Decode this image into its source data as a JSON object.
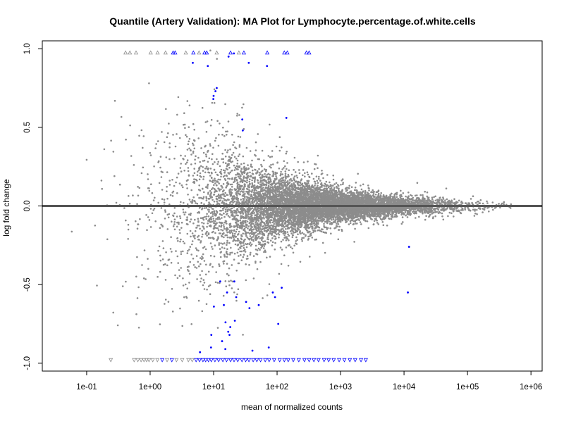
{
  "chart_data": {
    "type": "scatter",
    "title": "Quantile (Artery Validation): MA Plot for Lymphocyte.percentage.of.white.cells",
    "xlabel": "mean of normalized counts",
    "ylabel": "log fold change",
    "x_scale": "log10",
    "xlim": [
      0.02,
      1500000
    ],
    "ylim": [
      -1.05,
      1.05
    ],
    "x_ticks": [
      {
        "value": 0.1,
        "label": "1e-01"
      },
      {
        "value": 1,
        "label": "1e+00"
      },
      {
        "value": 10,
        "label": "1e+01"
      },
      {
        "value": 100,
        "label": "1e+02"
      },
      {
        "value": 1000,
        "label": "1e+03"
      },
      {
        "value": 10000,
        "label": "1e+04"
      },
      {
        "value": 100000,
        "label": "1e+05"
      },
      {
        "value": 1000000,
        "label": "1e+06"
      }
    ],
    "y_ticks": [
      {
        "value": 1.0,
        "label": "1.0"
      },
      {
        "value": 0.5,
        "label": "0.5"
      },
      {
        "value": 0.0,
        "label": "0.0"
      },
      {
        "value": -0.5,
        "label": "-0.5"
      },
      {
        "value": -1.0,
        "label": "-1.0"
      }
    ],
    "reference_line": {
      "y": 0,
      "color": "#555555"
    },
    "grid": false,
    "colors": {
      "not_significant": "#8c8c8c",
      "significant": "#0000ff"
    },
    "significant_points": [
      {
        "x": 4.7,
        "y": 0.91
      },
      {
        "x": 8.1,
        "y": 0.89
      },
      {
        "x": 17.2,
        "y": 0.95
      },
      {
        "x": 20.9,
        "y": 0.97
      },
      {
        "x": 35.8,
        "y": 0.91
      },
      {
        "x": 69.4,
        "y": 0.89
      },
      {
        "x": 11.2,
        "y": 0.75
      },
      {
        "x": 10.7,
        "y": 0.73
      },
      {
        "x": 10.0,
        "y": 0.7
      },
      {
        "x": 9.9,
        "y": 0.68
      },
      {
        "x": 28.3,
        "y": 0.55
      },
      {
        "x": 28.8,
        "y": 0.48
      },
      {
        "x": 140.1,
        "y": 0.56
      },
      {
        "x": 12.7,
        "y": -0.48
      },
      {
        "x": 16.3,
        "y": -0.55
      },
      {
        "x": 21.2,
        "y": -0.48
      },
      {
        "x": 118.3,
        "y": -0.52
      },
      {
        "x": 12000,
        "y": -0.26
      },
      {
        "x": 11500,
        "y": -0.55
      },
      {
        "x": 10.1,
        "y": -0.64
      },
      {
        "x": 14.5,
        "y": -0.63
      },
      {
        "x": 22.7,
        "y": -0.58
      },
      {
        "x": 32.5,
        "y": -0.61
      },
      {
        "x": 36.7,
        "y": -0.65
      },
      {
        "x": 51.4,
        "y": -0.63
      },
      {
        "x": 85.6,
        "y": -0.55
      },
      {
        "x": 92.8,
        "y": -0.58
      },
      {
        "x": 15.4,
        "y": -0.74
      },
      {
        "x": 18.3,
        "y": -0.77
      },
      {
        "x": 21.6,
        "y": -0.73
      },
      {
        "x": 104.3,
        "y": -0.75
      },
      {
        "x": 9.2,
        "y": -0.82
      },
      {
        "x": 13.6,
        "y": -0.86
      },
      {
        "x": 17.8,
        "y": -0.82
      },
      {
        "x": 6.1,
        "y": -0.93
      },
      {
        "x": 9.1,
        "y": -0.9
      },
      {
        "x": 15.3,
        "y": -0.91
      },
      {
        "x": 40.9,
        "y": -0.92
      },
      {
        "x": 73.9,
        "y": -0.9
      },
      {
        "x": 17.0,
        "y": -0.8
      }
    ],
    "capped_points": [
      {
        "x": 0.41,
        "y": 1.0,
        "significant": false
      },
      {
        "x": 0.48,
        "y": 1.0,
        "significant": false
      },
      {
        "x": 0.6,
        "y": 1.0,
        "significant": false
      },
      {
        "x": 1.02,
        "y": 1.0,
        "significant": false
      },
      {
        "x": 1.31,
        "y": 1.0,
        "significant": false
      },
      {
        "x": 1.75,
        "y": 1.0,
        "significant": false
      },
      {
        "x": 2.3,
        "y": 1.0,
        "significant": true
      },
      {
        "x": 2.48,
        "y": 1.0,
        "significant": true
      },
      {
        "x": 3.65,
        "y": 1.0,
        "significant": false
      },
      {
        "x": 4.8,
        "y": 1.0,
        "significant": true
      },
      {
        "x": 5.9,
        "y": 1.0,
        "significant": false
      },
      {
        "x": 7.2,
        "y": 1.0,
        "significant": true
      },
      {
        "x": 7.8,
        "y": 1.0,
        "significant": true
      },
      {
        "x": 11.2,
        "y": 1.0,
        "significant": false
      },
      {
        "x": 18.5,
        "y": 1.0,
        "significant": true
      },
      {
        "x": 25.0,
        "y": 1.0,
        "significant": false
      },
      {
        "x": 30.0,
        "y": 1.0,
        "significant": true
      },
      {
        "x": 70.0,
        "y": 1.0,
        "significant": true
      },
      {
        "x": 130.0,
        "y": 1.0,
        "significant": true
      },
      {
        "x": 145.0,
        "y": 1.0,
        "significant": true
      },
      {
        "x": 290.0,
        "y": 1.0,
        "significant": true
      },
      {
        "x": 320.0,
        "y": 1.0,
        "significant": true
      },
      {
        "x": 0.24,
        "y": -1.0,
        "significant": false
      },
      {
        "x": 0.56,
        "y": -1.0,
        "significant": false
      },
      {
        "x": 0.64,
        "y": -1.0,
        "significant": false
      },
      {
        "x": 0.72,
        "y": -1.0,
        "significant": false
      },
      {
        "x": 0.8,
        "y": -1.0,
        "significant": false
      },
      {
        "x": 0.88,
        "y": -1.0,
        "significant": false
      },
      {
        "x": 0.96,
        "y": -1.0,
        "significant": false
      },
      {
        "x": 1.1,
        "y": -1.0,
        "significant": false
      },
      {
        "x": 1.3,
        "y": -1.0,
        "significant": false
      },
      {
        "x": 1.55,
        "y": -1.0,
        "significant": true
      },
      {
        "x": 1.85,
        "y": -1.0,
        "significant": false
      },
      {
        "x": 2.2,
        "y": -1.0,
        "significant": true
      },
      {
        "x": 2.6,
        "y": -1.0,
        "significant": false
      },
      {
        "x": 3.2,
        "y": -1.0,
        "significant": false
      },
      {
        "x": 4.0,
        "y": -1.0,
        "significant": false
      },
      {
        "x": 4.6,
        "y": -1.0,
        "significant": false
      },
      {
        "x": 5.3,
        "y": -1.0,
        "significant": true
      },
      {
        "x": 6.0,
        "y": -1.0,
        "significant": true
      },
      {
        "x": 6.8,
        "y": -1.0,
        "significant": true
      },
      {
        "x": 7.5,
        "y": -1.0,
        "significant": true
      },
      {
        "x": 8.3,
        "y": -1.0,
        "significant": true
      },
      {
        "x": 9.2,
        "y": -1.0,
        "significant": true
      },
      {
        "x": 10.5,
        "y": -1.0,
        "significant": true
      },
      {
        "x": 12.0,
        "y": -1.0,
        "significant": true
      },
      {
        "x": 14.0,
        "y": -1.0,
        "significant": true
      },
      {
        "x": 16.0,
        "y": -1.0,
        "significant": true
      },
      {
        "x": 18.5,
        "y": -1.0,
        "significant": true
      },
      {
        "x": 21.0,
        "y": -1.0,
        "significant": true
      },
      {
        "x": 24.0,
        "y": -1.0,
        "significant": true
      },
      {
        "x": 28.0,
        "y": -1.0,
        "significant": true
      },
      {
        "x": 32.0,
        "y": -1.0,
        "significant": true
      },
      {
        "x": 36.0,
        "y": -1.0,
        "significant": true
      },
      {
        "x": 42.0,
        "y": -1.0,
        "significant": true
      },
      {
        "x": 48.0,
        "y": -1.0,
        "significant": true
      },
      {
        "x": 55.0,
        "y": -1.0,
        "significant": true
      },
      {
        "x": 65.0,
        "y": -1.0,
        "significant": true
      },
      {
        "x": 75.0,
        "y": -1.0,
        "significant": true
      },
      {
        "x": 90.0,
        "y": -1.0,
        "significant": true
      },
      {
        "x": 110.0,
        "y": -1.0,
        "significant": true
      },
      {
        "x": 130.0,
        "y": -1.0,
        "significant": true
      },
      {
        "x": 150.0,
        "y": -1.0,
        "significant": true
      },
      {
        "x": 180.0,
        "y": -1.0,
        "significant": true
      },
      {
        "x": 220.0,
        "y": -1.0,
        "significant": true
      },
      {
        "x": 270.0,
        "y": -1.0,
        "significant": true
      },
      {
        "x": 320.0,
        "y": -1.0,
        "significant": true
      },
      {
        "x": 380.0,
        "y": -1.0,
        "significant": true
      },
      {
        "x": 450.0,
        "y": -1.0,
        "significant": true
      },
      {
        "x": 550.0,
        "y": -1.0,
        "significant": true
      },
      {
        "x": 650.0,
        "y": -1.0,
        "significant": true
      },
      {
        "x": 780.0,
        "y": -1.0,
        "significant": true
      },
      {
        "x": 950.0,
        "y": -1.0,
        "significant": true
      },
      {
        "x": 1150.0,
        "y": -1.0,
        "significant": true
      },
      {
        "x": 1400.0,
        "y": -1.0,
        "significant": true
      },
      {
        "x": 1700.0,
        "y": -1.0,
        "significant": true
      },
      {
        "x": 2100.0,
        "y": -1.0,
        "significant": true
      },
      {
        "x": 2500.0,
        "y": -1.0,
        "significant": true
      }
    ],
    "background_cloud": {
      "description_of_shape": "dense cloud of non-significant genes; spread narrows as mean count increases",
      "envelope": [
        {
          "x": 0.05,
          "y_spread": 0.35
        },
        {
          "x": 0.3,
          "y_spread": 0.75
        },
        {
          "x": 1,
          "y_spread": 0.7
        },
        {
          "x": 10,
          "y_spread": 0.4
        },
        {
          "x": 100,
          "y_spread": 0.18
        },
        {
          "x": 1000,
          "y_spread": 0.09
        },
        {
          "x": 10000,
          "y_spread": 0.05
        },
        {
          "x": 100000,
          "y_spread": 0.04
        },
        {
          "x": 500000,
          "y_spread": 0.02
        }
      ]
    }
  }
}
